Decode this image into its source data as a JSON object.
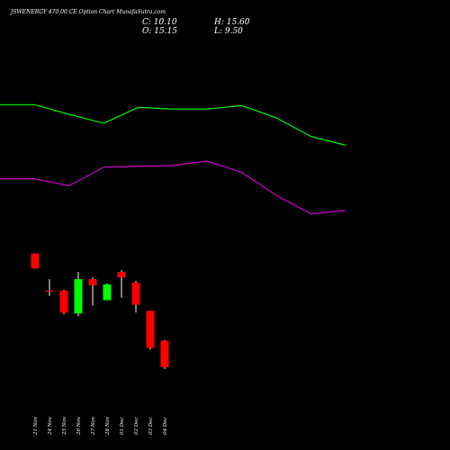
{
  "header": {
    "title": "JSWENERGY 470.00  CE Option  Chart MunafaSutra.com",
    "close_label": "C: 10.10",
    "high_label": "H: 15.60",
    "open_label": "O: 15.15",
    "low_label": "L: 9.50"
  },
  "colors": {
    "background": "#000000",
    "up": "#00ff00",
    "down": "#ff0000",
    "wick": "#ffffff",
    "upper_band": "#00ff00",
    "lower_band": "#cc00cc",
    "text": "#ffffff"
  },
  "chart_data": {
    "type": "candlestick",
    "ylim": [
      0,
      47
    ],
    "categories": [
      "21 Nov",
      "24 Nov",
      "25 Nov",
      "26 Nov",
      "27 Nov",
      "28 Nov",
      "01 Dec",
      "02 Dec",
      "03 Dec",
      "04 Dec"
    ],
    "candles": [
      {
        "date": "21 Nov",
        "open": 22.3,
        "high": 22.3,
        "low": 20.6,
        "close": 20.6
      },
      {
        "date": "24 Nov",
        "open": 18.1,
        "high": 19.4,
        "low": 17.5,
        "close": 18.0
      },
      {
        "date": "25 Nov",
        "open": 18.1,
        "high": 18.2,
        "low": 15.4,
        "close": 15.6
      },
      {
        "date": "26 Nov",
        "open": 15.5,
        "high": 20.2,
        "low": 15.2,
        "close": 19.4
      },
      {
        "date": "27 Nov",
        "open": 19.4,
        "high": 19.6,
        "low": 16.4,
        "close": 18.7
      },
      {
        "date": "28 Nov",
        "open": 17.0,
        "high": 18.9,
        "low": 17.0,
        "close": 18.8
      },
      {
        "date": "01 Dec",
        "open": 20.2,
        "high": 20.4,
        "low": 17.3,
        "close": 19.6
      },
      {
        "date": "02 Dec",
        "open": 19.0,
        "high": 19.2,
        "low": 15.6,
        "close": 16.5
      },
      {
        "date": "03 Dec",
        "open": 15.8,
        "high": 15.8,
        "low": 11.4,
        "close": 11.6
      },
      {
        "date": "04 Dec",
        "open": 12.4,
        "high": 12.5,
        "low": 9.2,
        "close": 9.4
      }
    ],
    "bands": {
      "upper": {
        "x": [
          0,
          1,
          2,
          3,
          4,
          5,
          6,
          7,
          8,
          9,
          10
        ],
        "values": [
          39.2,
          39.2,
          38.1,
          37.1,
          38.9,
          38.7,
          38.7,
          39.1,
          37.7,
          35.6,
          34.6
        ]
      },
      "lower": {
        "x": [
          0,
          1,
          2,
          3,
          4,
          5,
          6,
          7,
          8,
          9,
          10
        ],
        "values": [
          30.8,
          30.8,
          30.0,
          32.1,
          32.2,
          32.3,
          32.8,
          31.5,
          28.9,
          26.8,
          27.2
        ]
      }
    }
  }
}
